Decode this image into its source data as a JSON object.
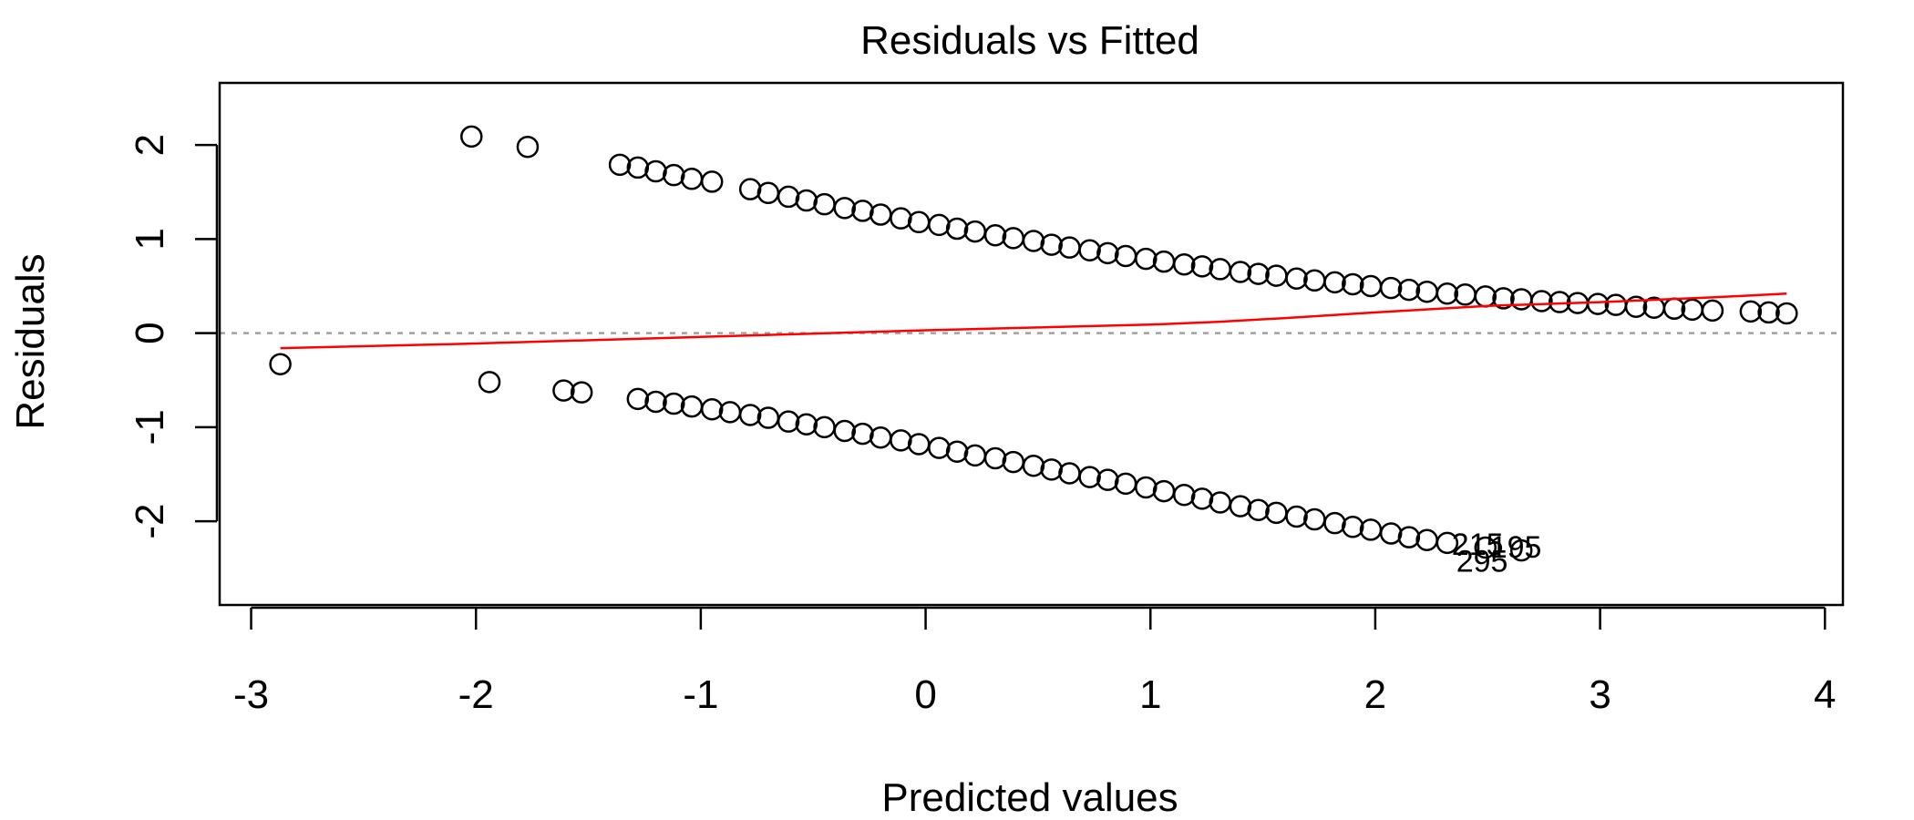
{
  "chart_data": {
    "type": "scatter",
    "title": "Residuals vs Fitted",
    "xlabel": "Predicted values",
    "ylabel": "Residuals",
    "xlim": [
      -3.14,
      4.08
    ],
    "ylim": [
      -2.89,
      2.66
    ],
    "x_ticks": [
      -3,
      -2,
      -1,
      0,
      1,
      2,
      3,
      4
    ],
    "y_ticks": [
      -2,
      -1,
      0,
      1,
      2
    ],
    "x_tick_labels": [
      "-3",
      "-2",
      "-1",
      "0",
      "1",
      "2",
      "3",
      "4"
    ],
    "y_tick_labels": [
      "-2",
      "-1",
      "0",
      "1",
      "2"
    ],
    "reference_line_y": 0,
    "grid": false,
    "colors": {
      "points": "#000000",
      "smooth_line": "#ff0000",
      "reference_line": "#a0a0a0"
    },
    "points": {
      "upper": [
        [
          -2.02,
          2.09
        ],
        [
          -1.77,
          1.98
        ],
        [
          -1.36,
          1.79
        ],
        [
          -1.28,
          1.76
        ],
        [
          -1.2,
          1.72
        ],
        [
          -1.12,
          1.68
        ],
        [
          -1.04,
          1.64
        ],
        [
          -0.95,
          1.61
        ],
        [
          -0.78,
          1.53
        ],
        [
          -0.7,
          1.49
        ],
        [
          -0.61,
          1.45
        ],
        [
          -0.53,
          1.41
        ],
        [
          -0.45,
          1.37
        ],
        [
          -0.36,
          1.33
        ],
        [
          -0.28,
          1.3
        ],
        [
          -0.2,
          1.26
        ],
        [
          -0.11,
          1.22
        ],
        [
          -0.03,
          1.18
        ],
        [
          0.06,
          1.15
        ],
        [
          0.14,
          1.11
        ],
        [
          0.22,
          1.08
        ],
        [
          0.31,
          1.04
        ],
        [
          0.39,
          1.01
        ],
        [
          0.48,
          0.98
        ],
        [
          0.56,
          0.94
        ],
        [
          0.64,
          0.91
        ],
        [
          0.73,
          0.88
        ],
        [
          0.81,
          0.85
        ],
        [
          0.89,
          0.82
        ],
        [
          0.98,
          0.79
        ],
        [
          1.06,
          0.76
        ],
        [
          1.15,
          0.73
        ],
        [
          1.23,
          0.71
        ],
        [
          1.31,
          0.68
        ],
        [
          1.4,
          0.65
        ],
        [
          1.48,
          0.63
        ],
        [
          1.56,
          0.61
        ],
        [
          1.65,
          0.58
        ],
        [
          1.73,
          0.56
        ],
        [
          1.82,
          0.54
        ],
        [
          1.9,
          0.52
        ],
        [
          1.98,
          0.5
        ],
        [
          2.07,
          0.48
        ],
        [
          2.15,
          0.46
        ],
        [
          2.23,
          0.44
        ],
        [
          2.32,
          0.42
        ],
        [
          2.4,
          0.41
        ],
        [
          2.49,
          0.39
        ],
        [
          2.57,
          0.37
        ],
        [
          2.65,
          0.36
        ],
        [
          2.74,
          0.34
        ],
        [
          2.82,
          0.33
        ],
        [
          2.9,
          0.32
        ],
        [
          2.99,
          0.31
        ],
        [
          3.07,
          0.3
        ],
        [
          3.16,
          0.28
        ],
        [
          3.24,
          0.27
        ],
        [
          3.33,
          0.26
        ],
        [
          3.41,
          0.25
        ],
        [
          3.5,
          0.24
        ],
        [
          3.67,
          0.23
        ],
        [
          3.75,
          0.22
        ],
        [
          3.83,
          0.21
        ]
      ],
      "lower": [
        [
          -2.87,
          -0.33
        ],
        [
          -1.94,
          -0.52
        ],
        [
          -1.61,
          -0.61
        ],
        [
          -1.53,
          -0.63
        ],
        [
          -1.28,
          -0.7
        ],
        [
          -1.2,
          -0.73
        ],
        [
          -1.12,
          -0.75
        ],
        [
          -1.04,
          -0.78
        ],
        [
          -0.95,
          -0.81
        ],
        [
          -0.87,
          -0.84
        ],
        [
          -0.78,
          -0.87
        ],
        [
          -0.7,
          -0.9
        ],
        [
          -0.61,
          -0.94
        ],
        [
          -0.53,
          -0.97
        ],
        [
          -0.45,
          -1.0
        ],
        [
          -0.36,
          -1.04
        ],
        [
          -0.28,
          -1.07
        ],
        [
          -0.2,
          -1.11
        ],
        [
          -0.11,
          -1.14
        ],
        [
          -0.03,
          -1.18
        ],
        [
          0.06,
          -1.22
        ],
        [
          0.14,
          -1.26
        ],
        [
          0.22,
          -1.3
        ],
        [
          0.31,
          -1.33
        ],
        [
          0.39,
          -1.37
        ],
        [
          0.48,
          -1.41
        ],
        [
          0.56,
          -1.45
        ],
        [
          0.64,
          -1.49
        ],
        [
          0.73,
          -1.53
        ],
        [
          0.81,
          -1.56
        ],
        [
          0.89,
          -1.6
        ],
        [
          0.98,
          -1.64
        ],
        [
          1.06,
          -1.68
        ],
        [
          1.15,
          -1.72
        ],
        [
          1.23,
          -1.76
        ],
        [
          1.31,
          -1.8
        ],
        [
          1.4,
          -1.84
        ],
        [
          1.48,
          -1.88
        ],
        [
          1.56,
          -1.91
        ],
        [
          1.65,
          -1.95
        ],
        [
          1.73,
          -1.98
        ],
        [
          1.82,
          -2.02
        ],
        [
          1.9,
          -2.06
        ],
        [
          1.98,
          -2.09
        ],
        [
          2.07,
          -2.13
        ],
        [
          2.15,
          -2.17
        ],
        [
          2.23,
          -2.2
        ],
        [
          2.32,
          -2.23
        ],
        [
          2.49,
          -2.28
        ],
        [
          2.65,
          -2.31
        ]
      ]
    },
    "smooth_line": [
      [
        -2.87,
        -0.16
      ],
      [
        -2.0,
        -0.11
      ],
      [
        -1.0,
        -0.04
      ],
      [
        0.0,
        0.03
      ],
      [
        0.5,
        0.06
      ],
      [
        1.0,
        0.09
      ],
      [
        1.3,
        0.12
      ],
      [
        1.6,
        0.16
      ],
      [
        2.0,
        0.22
      ],
      [
        2.5,
        0.29
      ],
      [
        3.0,
        0.33
      ],
      [
        3.5,
        0.38
      ],
      [
        3.83,
        0.42
      ]
    ],
    "annotations": [
      {
        "text": "215",
        "x": 2.34,
        "y": -2.24
      },
      {
        "text": "195",
        "x": 2.51,
        "y": -2.27
      },
      {
        "text": "295",
        "x": 2.36,
        "y": -2.42
      }
    ]
  }
}
